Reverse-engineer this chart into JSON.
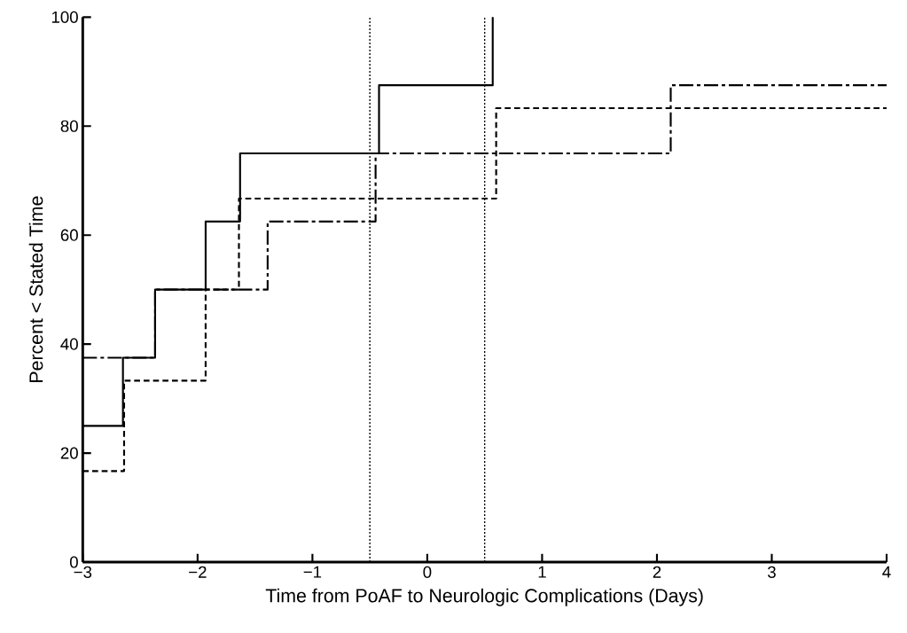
{
  "chart_data": {
    "type": "step",
    "xlabel": "Time from PoAF to Neurologic Complications (Days)",
    "ylabel": "Percent  <  Stated Time",
    "xlim": [
      -3,
      4
    ],
    "ylim": [
      0,
      100
    ],
    "xticks": [
      {
        "value": -3,
        "label": "−3"
      },
      {
        "value": -2,
        "label": "−2"
      },
      {
        "value": -1,
        "label": "−1"
      },
      0,
      1,
      2,
      3,
      4
    ],
    "yticks": [
      0,
      20,
      40,
      60,
      80,
      100
    ],
    "grid": false,
    "marker": "none",
    "series": [
      {
        "color": "#000000",
        "line_style": "solid",
        "x": [
          -3,
          -2.65,
          -2.37,
          -1.93,
          -1.63,
          -0.42,
          0.57
        ],
        "values": [
          25,
          37.5,
          50,
          62.5,
          75,
          87.5,
          100
        ]
      },
      {
        "color": "#000000",
        "line_style": "dashed",
        "x": [
          -3,
          -2.64,
          -1.93,
          -1.64,
          0.6,
          4
        ],
        "values": [
          16.7,
          33.3,
          50,
          66.7,
          83.3,
          83.3
        ]
      },
      {
        "color": "#000000",
        "line_style": "dashdot",
        "x": [
          -3,
          -2.37,
          -1.39,
          -0.45,
          2.12,
          4
        ],
        "values": [
          37.5,
          50,
          62.5,
          75,
          87.5,
          87.5
        ]
      }
    ],
    "ref_lines": [
      {
        "axis": "x",
        "value": -0.5,
        "color": "#000000",
        "line_style": "dotted"
      },
      {
        "axis": "x",
        "value": 0.5,
        "color": "#000000",
        "line_style": "dotted"
      }
    ]
  }
}
